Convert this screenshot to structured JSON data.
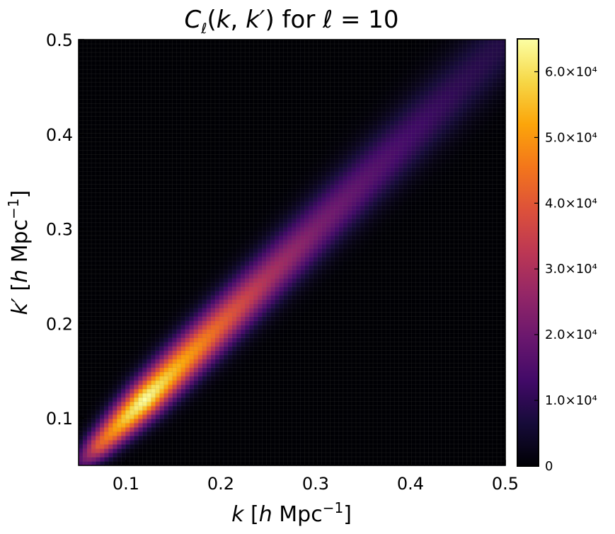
{
  "chart_data": {
    "type": "heatmap",
    "title": "C_ℓ(k, k′) for ℓ = 10",
    "xlabel": "k [h Mpc⁻¹]",
    "ylabel": "k′ [h Mpc⁻¹]",
    "x_range": [
      0.05,
      0.5
    ],
    "y_range": [
      0.05,
      0.5
    ],
    "x_ticks": [
      0.1,
      0.2,
      0.3,
      0.4,
      0.5
    ],
    "y_ticks": [
      0.1,
      0.2,
      0.3,
      0.4,
      0.5
    ],
    "colorbar": {
      "colormap": "inferno",
      "range": [
        0,
        65000
      ],
      "ticks": [
        0,
        10000,
        20000,
        30000,
        40000,
        50000,
        60000
      ],
      "tick_labels": [
        "0",
        "1.0×10⁴",
        "2.0×10⁴",
        "3.0×10⁴",
        "4.0×10⁴",
        "5.0×10⁴",
        "6.0×10⁴"
      ]
    },
    "grid": true,
    "diagonal_profile": {
      "k": [
        0.05,
        0.07,
        0.1,
        0.12,
        0.15,
        0.2,
        0.25,
        0.3,
        0.35,
        0.4,
        0.45,
        0.5
      ],
      "peak_value": [
        12000,
        40000,
        58000,
        65000,
        55000,
        42000,
        30000,
        22000,
        17000,
        13000,
        10000,
        8000
      ],
      "width": [
        0.008,
        0.01,
        0.012,
        0.013,
        0.014,
        0.015,
        0.016,
        0.017,
        0.018,
        0.019,
        0.02,
        0.021
      ]
    }
  }
}
